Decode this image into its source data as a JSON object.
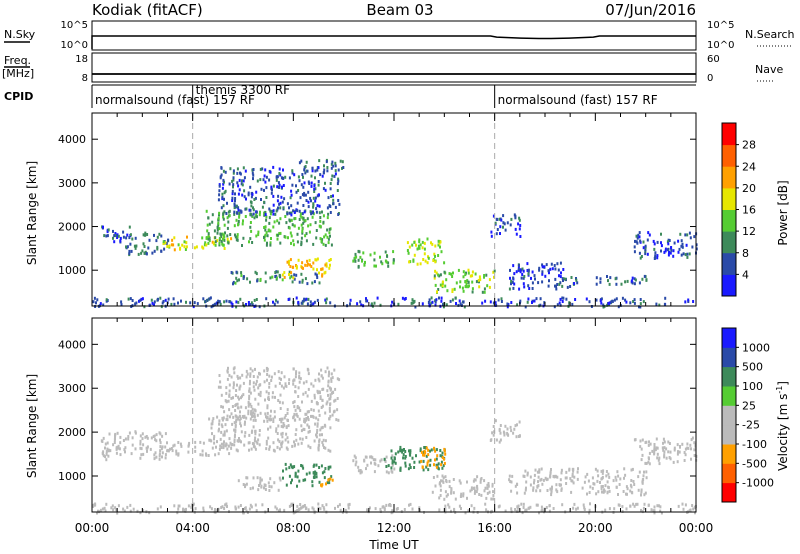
{
  "header": {
    "station": "Kodiak (fitACF)",
    "beam": "Beam 03",
    "date": "07/Jun/2016"
  },
  "top_panels": {
    "nsky_label": "N.Sky",
    "nsky_ticks": [
      "10^5",
      "10^0"
    ],
    "nsearch_label": "N.Search",
    "freq_label": "Freq.",
    "freq_unit": "[MHz]",
    "freq_ticks": [
      "18",
      "8"
    ],
    "nave_label": "Nave",
    "nave_ticks": [
      "60",
      "0"
    ],
    "cpid_label": "CPID",
    "cpid_segments": [
      {
        "label": "normalsound (fast) 157 RF",
        "start_hour": 0
      },
      {
        "label": "themis 3300 RF",
        "start_hour": 4
      },
      {
        "label": "normalsound (fast) 157 RF",
        "start_hour": 16
      }
    ]
  },
  "colors": {
    "power": [
      "#1a1aff",
      "#2a4aa8",
      "#3d8a5a",
      "#55cc33",
      "#e6e600",
      "#ffa000",
      "#ff6000",
      "#ff0000"
    ],
    "velocity": [
      "#ff0000",
      "#ff6000",
      "#ffa000",
      "#bbbbbb",
      "#bbbbbb",
      "#55cc33",
      "#3d8a5a",
      "#2a4aa8",
      "#1a1aff"
    ]
  },
  "chart_data": [
    {
      "type": "heatmap",
      "name": "power-panel",
      "ylabel": "Slant Range [km]",
      "yticks": [
        1000,
        2000,
        3000,
        4000
      ],
      "ylim": [
        180,
        4600
      ],
      "xlim": [
        0,
        24
      ],
      "colorbar_label": "Power [dB]",
      "colorbar_ticks": [
        4,
        8,
        12,
        16,
        20,
        24,
        28
      ],
      "regions": [
        {
          "t0": 0.3,
          "t1": 1.5,
          "r0": 1650,
          "r1": 2050,
          "value": 6
        },
        {
          "t0": 1.3,
          "t1": 3.0,
          "r0": 1380,
          "r1": 1900,
          "value": 8
        },
        {
          "t0": 2.8,
          "t1": 5.5,
          "r0": 1500,
          "r1": 1800,
          "value": 18
        },
        {
          "t0": 4.5,
          "t1": 9.5,
          "r0": 1600,
          "r1": 2400,
          "value": 12
        },
        {
          "t0": 5.0,
          "t1": 9.8,
          "r0": 2300,
          "r1": 3400,
          "value": 6
        },
        {
          "t0": 8.2,
          "t1": 10.0,
          "r0": 3300,
          "r1": 3550,
          "value": 8
        },
        {
          "t0": 5.5,
          "t1": 9.0,
          "r0": 700,
          "r1": 1000,
          "value": 9
        },
        {
          "t0": 7.5,
          "t1": 9.5,
          "r0": 850,
          "r1": 1300,
          "value": 20
        },
        {
          "t0": 10.3,
          "t1": 12.0,
          "r0": 1100,
          "r1": 1500,
          "value": 12
        },
        {
          "t0": 12.5,
          "t1": 14.0,
          "r0": 1150,
          "r1": 1750,
          "value": 16
        },
        {
          "t0": 13.5,
          "t1": 16.0,
          "r0": 500,
          "r1": 1050,
          "value": 14
        },
        {
          "t0": 15.8,
          "t1": 17.0,
          "r0": 1800,
          "r1": 2300,
          "value": 6
        },
        {
          "t0": 16.5,
          "t1": 19.0,
          "r0": 600,
          "r1": 1200,
          "value": 5
        },
        {
          "t0": 18.5,
          "t1": 22.0,
          "r0": 700,
          "r1": 900,
          "value": 7
        },
        {
          "t0": 21.5,
          "t1": 24.0,
          "r0": 1300,
          "r1": 1900,
          "value": 5
        },
        {
          "t0": 0.0,
          "t1": 24.0,
          "r0": 190,
          "r1": 400,
          "value": 6
        }
      ]
    },
    {
      "type": "heatmap",
      "name": "velocity-panel",
      "xlabel": "Time UT",
      "ylabel": "Slant Range [km]",
      "yticks": [
        1000,
        2000,
        3000,
        4000
      ],
      "ylim": [
        180,
        4600
      ],
      "xlim": [
        0,
        24
      ],
      "xticks": [
        "00:00",
        "04:00",
        "08:00",
        "12:00",
        "16:00",
        "20:00",
        "00:00"
      ],
      "colorbar_label": "Velocity [m s^-1]",
      "colorbar_ticks": [
        "-1000",
        "-500",
        "-100",
        "-25",
        "25",
        "100",
        "500",
        "1000"
      ],
      "regions": [
        {
          "t0": 0.3,
          "t1": 3.0,
          "r0": 1400,
          "r1": 2050,
          "value": 0
        },
        {
          "t0": 2.8,
          "t1": 5.5,
          "r0": 1500,
          "r1": 1800,
          "value": 0
        },
        {
          "t0": 4.5,
          "t1": 9.5,
          "r0": 1600,
          "r1": 2400,
          "value": 0
        },
        {
          "t0": 5.0,
          "t1": 9.8,
          "r0": 2300,
          "r1": 3500,
          "value": 0
        },
        {
          "t0": 5.5,
          "t1": 7.5,
          "r0": 700,
          "r1": 1000,
          "value": 0
        },
        {
          "t0": 7.5,
          "t1": 9.5,
          "r0": 800,
          "r1": 1300,
          "value": 150
        },
        {
          "t0": 9.0,
          "t1": 9.6,
          "r0": 800,
          "r1": 1000,
          "value": -300
        },
        {
          "t0": 10.3,
          "t1": 12.0,
          "r0": 1100,
          "r1": 1500,
          "value": 0
        },
        {
          "t0": 11.5,
          "t1": 14.0,
          "r0": 1150,
          "r1": 1700,
          "value": 150
        },
        {
          "t0": 13.0,
          "t1": 14.0,
          "r0": 1200,
          "r1": 1700,
          "value": -300
        },
        {
          "t0": 13.5,
          "t1": 16.0,
          "r0": 500,
          "r1": 1050,
          "value": 0
        },
        {
          "t0": 15.8,
          "t1": 17.0,
          "r0": 1800,
          "r1": 2300,
          "value": 0
        },
        {
          "t0": 16.5,
          "t1": 22.0,
          "r0": 600,
          "r1": 1200,
          "value": 0
        },
        {
          "t0": 21.5,
          "t1": 24.0,
          "r0": 1300,
          "r1": 1900,
          "value": 0
        },
        {
          "t0": 0.0,
          "t1": 24.0,
          "r0": 190,
          "r1": 400,
          "value": 0
        }
      ]
    }
  ]
}
